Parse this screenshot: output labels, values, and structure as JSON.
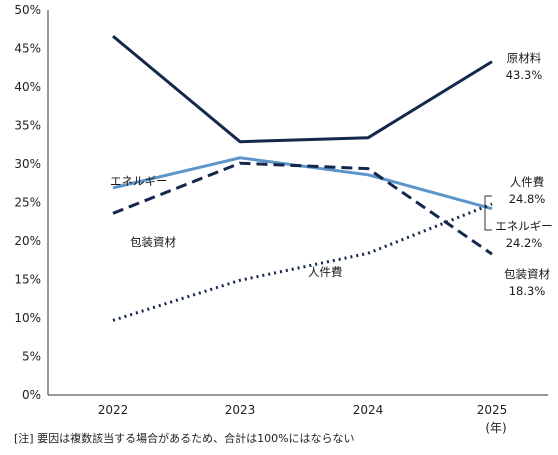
{
  "chart_data": {
    "type": "line",
    "categories": [
      "2022",
      "2023",
      "2024",
      "2025"
    ],
    "x_unit": "(年)",
    "ylim": [
      0,
      50
    ],
    "y_ticks": [
      "0%",
      "5%",
      "10%",
      "15%",
      "20%",
      "25%",
      "30%",
      "35%",
      "40%",
      "45%",
      "50%"
    ],
    "grid": false,
    "series": [
      {
        "name": "原材料",
        "values": [
          46.6,
          32.9,
          33.4,
          43.3
        ],
        "color": "#14284b",
        "style": "solid",
        "end_label": "43.3%"
      },
      {
        "name": "エネルギー",
        "values": [
          26.9,
          30.8,
          28.6,
          24.2
        ],
        "color": "#5b95c9",
        "style": "solid",
        "end_label": "24.2%"
      },
      {
        "name": "包装資材",
        "values": [
          23.6,
          30.1,
          29.4,
          18.3
        ],
        "color": "#14284b",
        "style": "dashed",
        "end_label": "18.3%"
      },
      {
        "name": "人件費",
        "values": [
          9.7,
          14.9,
          18.4,
          24.8
        ],
        "color": "#14284b",
        "style": "dotted",
        "end_label": "24.8%"
      }
    ],
    "inline_labels": [
      "エネルギー",
      "包装資材",
      "人件費"
    ]
  },
  "note": "[注] 要因は複数該当する場合があるため、合計は100%にはならない"
}
